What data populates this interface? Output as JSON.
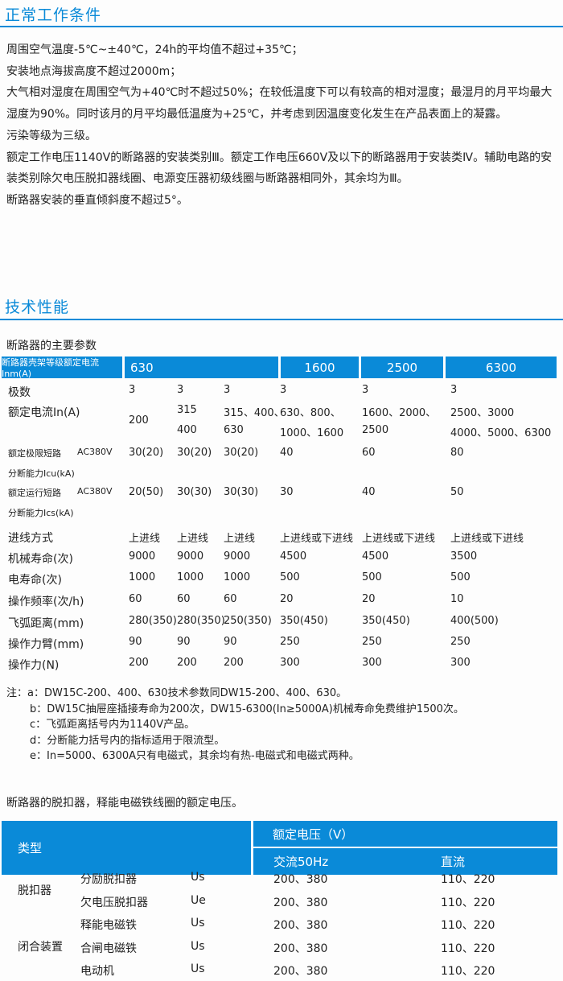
{
  "section1": {
    "title": "正常工作条件",
    "paragraphs": [
      "周围空气温度-5℃~±40℃，24h的平均值不超过+35℃；",
      "安装地点海拔高度不超过2000m；",
      "大气相对湿度在周围空气为+40℃时不超过50%；在较低温度下可以有较高的相对湿度；最湿月的月平均最大湿度为90%。同时该月的月平均最低温度为+25℃，并考虑到因温度变化发生在产品表面上的凝露。",
      "污染等级为三级。",
      "额定工作电压1140V的断路器的安装类别Ⅲ。额定工作电压660V及以下的断路器用于安装类Ⅳ。辅助电路的安装类别除欠电压脱扣器线圈、电源变压器初级线圈与断路器相同外，其余均为Ⅲ。",
      "断路器安装的垂直倾斜度不超过5°。"
    ]
  },
  "section2": {
    "title": "技术性能",
    "table1_title": "断路器的主要参数",
    "table1": {
      "header": [
        "断路器壳架等级额定电流Inm(A)",
        "630",
        "1600",
        "2500",
        "6300"
      ],
      "rows": [
        {
          "label": [
            "极数"
          ],
          "cells": [
            [
              "3"
            ],
            [
              "3"
            ],
            [
              "3"
            ],
            [
              "3"
            ],
            [
              "3"
            ],
            [
              "3"
            ]
          ]
        },
        {
          "label": [
            "额定电流In(A)"
          ],
          "cells": [
            [
              "200"
            ],
            [
              "315",
              "400"
            ],
            [
              "315、400、",
              "630"
            ],
            [
              "630、800、",
              "1000、1600"
            ],
            [
              "1600、2000、",
              "2500"
            ],
            [
              "2500、3000",
              "4000、5000、6300"
            ]
          ]
        },
        {
          "label": [
            "额定极限短路",
            "分断能力Icu(kA)"
          ],
          "sublabel": "AC380V",
          "cells": [
            [
              "30(20)"
            ],
            [
              "30(20)"
            ],
            [
              "30(20)"
            ],
            [
              "40"
            ],
            [
              "60"
            ],
            [
              "80"
            ]
          ]
        },
        {
          "label": [
            "额定运行短路",
            "分断能力Ics(kA)"
          ],
          "sublabel": "AC380V",
          "cells": [
            [
              "20(50)"
            ],
            [
              "30(30)"
            ],
            [
              "30(30)"
            ],
            [
              "30"
            ],
            [
              "40"
            ],
            [
              "50"
            ]
          ]
        },
        {
          "label": [
            "进线方式"
          ],
          "cells": [
            [
              "上进线"
            ],
            [
              "上进线"
            ],
            [
              "上进线"
            ],
            [
              "上进线或下进线"
            ],
            [
              "上进线或下进线"
            ],
            [
              "上进线或下进线"
            ]
          ]
        },
        {
          "label": [
            "机械寿命(次)"
          ],
          "cells": [
            [
              "9000"
            ],
            [
              "9000"
            ],
            [
              "9000"
            ],
            [
              "4500"
            ],
            [
              "4500"
            ],
            [
              "3500"
            ]
          ]
        },
        {
          "label": [
            "电寿命(次)"
          ],
          "cells": [
            [
              "1000"
            ],
            [
              "1000"
            ],
            [
              "1000"
            ],
            [
              "500"
            ],
            [
              "500"
            ],
            [
              "500"
            ]
          ]
        },
        {
          "label": [
            "操作频率(次/h)"
          ],
          "cells": [
            [
              "60"
            ],
            [
              "60"
            ],
            [
              "60"
            ],
            [
              "20"
            ],
            [
              "20"
            ],
            [
              "10"
            ]
          ]
        },
        {
          "label": [
            "飞弧距离(mm)"
          ],
          "cells": [
            [
              "280(350)"
            ],
            [
              "280(350)"
            ],
            [
              "250(350)"
            ],
            [
              "350(450)"
            ],
            [
              "350(450)"
            ],
            [
              "400(500)"
            ]
          ]
        },
        {
          "label": [
            "操作力臂(mm)"
          ],
          "cells": [
            [
              "90"
            ],
            [
              "90"
            ],
            [
              "90"
            ],
            [
              "250"
            ],
            [
              "250"
            ],
            [
              "250"
            ]
          ]
        },
        {
          "label": [
            "操作力(N)"
          ],
          "cells": [
            [
              "200"
            ],
            [
              "200"
            ],
            [
              "200"
            ],
            [
              "300"
            ],
            [
              "300"
            ],
            [
              "300"
            ]
          ]
        }
      ]
    },
    "notes": [
      "注：a：DW15C-200、400、630技术参数同DW15-200、400、630。",
      "b：DW15C抽屉座插接寿命为200次，DW15-6300(In≥5000A)机械寿命免费维护1500次。",
      "c：飞弧距离括号内为1140V产品。",
      "d：分断能力括号内的指标适用于限流型。",
      "e：In=5000、6300A只有电磁式，其余均有热-电磁式和电磁式两种。"
    ],
    "table2_title": "断路器的脱扣器，释能电磁铁线圈的额定电压。",
    "table2": {
      "header_type": "类型",
      "header_voltage": "额定电压（V）",
      "header_ac": "交流50Hz",
      "header_dc": "直流",
      "groups": [
        "脱扣器",
        "闭合装置"
      ],
      "rows": [
        [
          "分励脱扣器",
          "Us",
          "200、380",
          "110、220"
        ],
        [
          "欠电压脱扣器",
          "Ue",
          "200、380",
          "110、220"
        ],
        [
          "释能电磁铁",
          "Us",
          "200、380",
          "110、220"
        ],
        [
          "合闸电磁铁",
          "Us",
          "200、380",
          "110、220"
        ],
        [
          "电动机",
          "Us",
          "200、380",
          "110、220"
        ]
      ]
    }
  },
  "colors": {
    "accent": "#0a8ad8"
  }
}
